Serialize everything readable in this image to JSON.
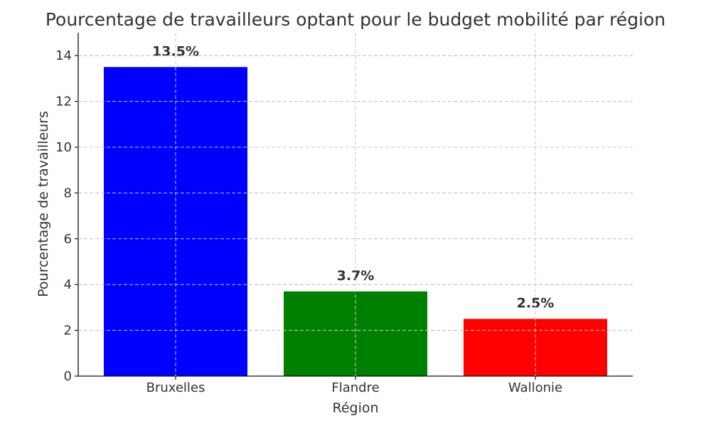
{
  "chart_data": {
    "type": "bar",
    "title": "Pourcentage de travailleurs optant pour le budget mobilité par région",
    "xlabel": "Région",
    "ylabel": "Pourcentage de travailleurs",
    "categories": [
      "Bruxelles",
      "Flandre",
      "Wallonie"
    ],
    "values": [
      13.5,
      3.7,
      2.5
    ],
    "data_labels": [
      "13.5%",
      "3.7%",
      "2.5%"
    ],
    "colors": [
      "#0000ff",
      "#008000",
      "#ff0000"
    ],
    "ylim": [
      0,
      15
    ],
    "yticks": [
      0,
      2,
      4,
      6,
      8,
      10,
      12,
      14
    ],
    "ytick_labels": [
      "0",
      "2",
      "4",
      "6",
      "8",
      "10",
      "12",
      "14"
    ],
    "grid": true
  }
}
